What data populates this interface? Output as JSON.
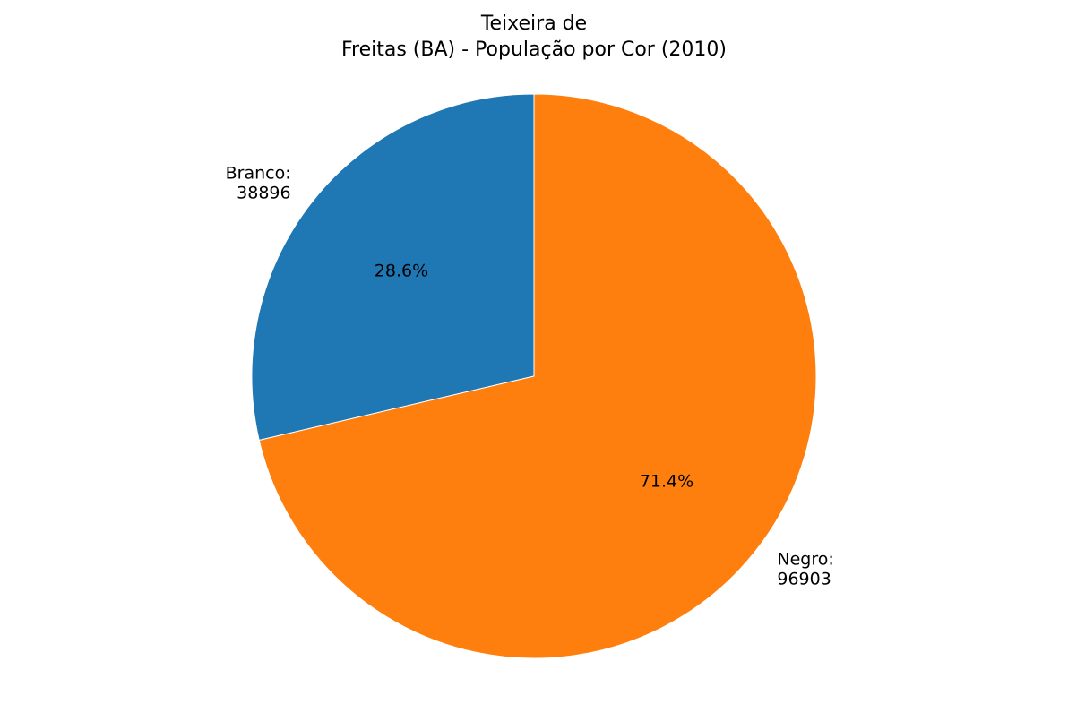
{
  "chart_data": {
    "type": "pie",
    "title_lines": [
      "Teixeira de",
      "Freitas (BA) - População por Cor (2010)"
    ],
    "slices": [
      {
        "label": "Branco",
        "value": 38896,
        "label_lines": [
          "Branco:",
          "38896"
        ],
        "percent_label": "28.6%",
        "color": "#1f77b4"
      },
      {
        "label": "Negro",
        "value": 96903,
        "label_lines": [
          "Negro:",
          "96903"
        ],
        "percent_label": "71.4%",
        "color": "#ff7f0e"
      }
    ],
    "start_angle_deg": 90,
    "direction": "counterclockwise",
    "legend": "none"
  }
}
